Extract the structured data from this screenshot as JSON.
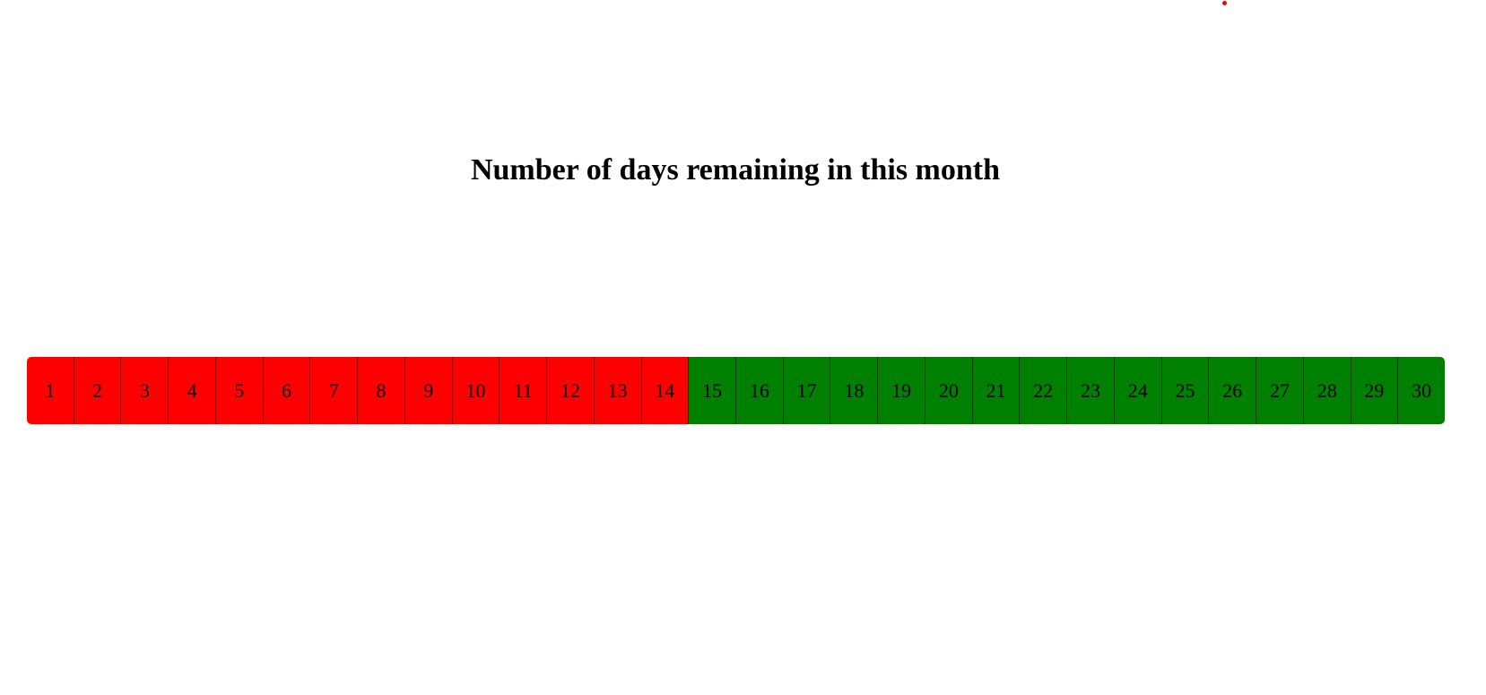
{
  "title": "Number of days remaining in this month",
  "colors": {
    "elapsed": "#ff0000",
    "remaining": "#008000",
    "marker_dot": "#ff0000"
  },
  "days": {
    "elapsed": [
      "1",
      "2",
      "3",
      "4",
      "5",
      "6",
      "7",
      "8",
      "9",
      "10",
      "11",
      "12",
      "13",
      "14"
    ],
    "remaining": [
      "15",
      "16",
      "17",
      "18",
      "19",
      "20",
      "21",
      "22",
      "23",
      "24",
      "25",
      "26",
      "27",
      "28",
      "29",
      "30"
    ]
  }
}
